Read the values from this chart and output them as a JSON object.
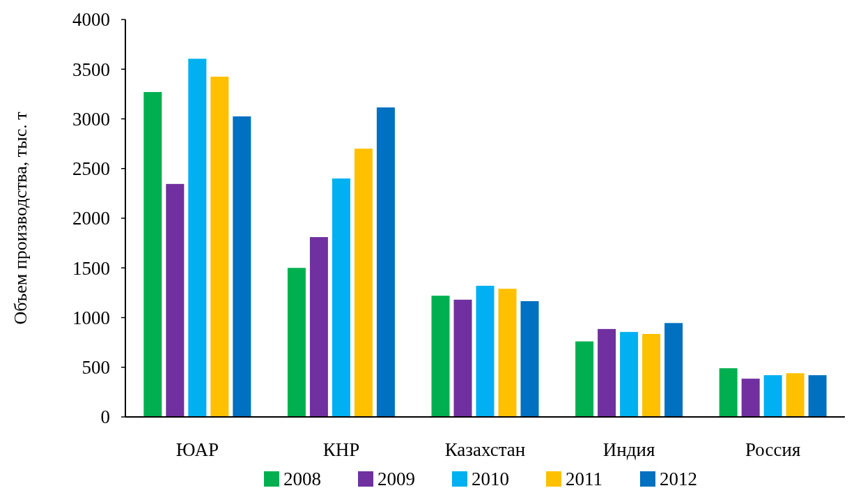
{
  "chart_data": {
    "type": "bar",
    "ylabel": "Объем производства, тыс. т",
    "categories": [
      "ЮАР",
      "КНР",
      "Казахстан",
      "Индия",
      "Россия"
    ],
    "series": [
      {
        "name": "2008",
        "color": "#00b050",
        "values": [
          3270,
          1500,
          1220,
          760,
          490
        ]
      },
      {
        "name": "2009",
        "color": "#7030a0",
        "values": [
          2345,
          1810,
          1180,
          885,
          385
        ]
      },
      {
        "name": "2010",
        "color": "#00b0f0",
        "values": [
          3605,
          2400,
          1320,
          855,
          420
        ]
      },
      {
        "name": "2011",
        "color": "#ffc000",
        "values": [
          3425,
          2700,
          1290,
          835,
          440
        ]
      },
      {
        "name": "2012",
        "color": "#0070c0",
        "values": [
          3025,
          3115,
          1165,
          945,
          420
        ]
      }
    ],
    "ylim": [
      0,
      4000
    ],
    "yticks": [
      0,
      500,
      1000,
      1500,
      2000,
      2500,
      3000,
      3500,
      4000
    ],
    "grid": false,
    "legend": "bottom"
  }
}
